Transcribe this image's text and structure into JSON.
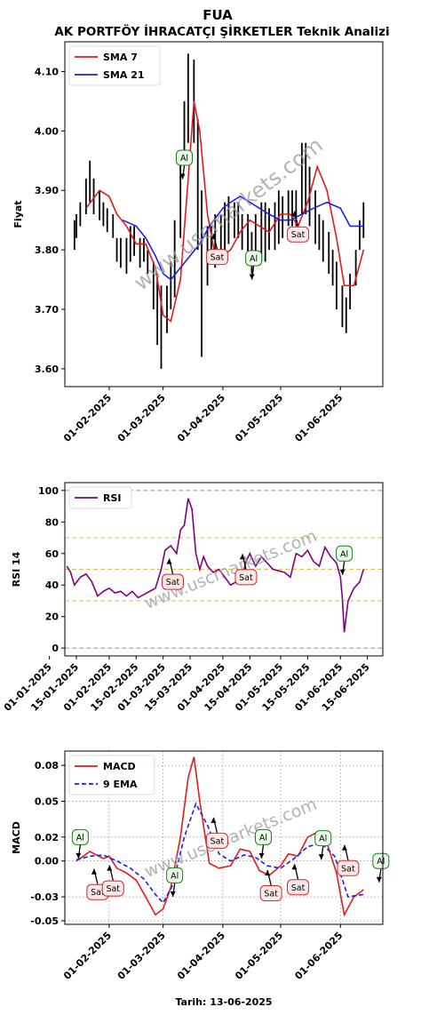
{
  "header": {
    "ticker": "FUA",
    "title": "AK PORTFÖY İHRACATÇI ŞİRKETLER Teknik Analizi"
  },
  "footer": {
    "date_label": "Tarih: 13-06-2025"
  },
  "watermark": "www.uscmarkets.com",
  "colors": {
    "sma7": "#e41a1c",
    "sma21": "#1f1fe8",
    "rsi": "#800080",
    "macd": "#e41a1c",
    "ema": "#1f1fe8",
    "buy": "#1a7f1a",
    "sell": "#d62728"
  },
  "chart_data": [
    {
      "type": "line",
      "id": "price",
      "ylabel": "Fiyat",
      "ylim": [
        3.57,
        4.15
      ],
      "yticks": [
        3.6,
        3.7,
        3.8,
        3.9,
        4.0,
        4.1
      ],
      "ytick_labels": [
        "3.60",
        "3.70",
        "3.80",
        "3.90",
        "4.00",
        "4.10"
      ],
      "xlim": [
        "2025-01-09",
        "2025-06-23"
      ],
      "xticks": [
        "2025-02-01",
        "2025-03-01",
        "2025-04-01",
        "2025-05-01",
        "2025-06-01"
      ],
      "xtick_labels": [
        "01-02-2025",
        "01-03-2025",
        "01-04-2025",
        "01-05-2025",
        "01-06-2025"
      ],
      "legend": {
        "position": "top-left",
        "entries": [
          "SMA 7",
          "SMA 21"
        ]
      },
      "price_bars": {
        "x": [
          "2025-01-14",
          "2025-01-15",
          "2025-01-17",
          "2025-01-20",
          "2025-01-22",
          "2025-01-24",
          "2025-01-27",
          "2025-01-29",
          "2025-01-31",
          "2025-02-03",
          "2025-02-05",
          "2025-02-07",
          "2025-02-10",
          "2025-02-12",
          "2025-02-14",
          "2025-02-17",
          "2025-02-19",
          "2025-02-21",
          "2025-02-24",
          "2025-02-26",
          "2025-02-28",
          "2025-03-03",
          "2025-03-05",
          "2025-03-07",
          "2025-03-10",
          "2025-03-12",
          "2025-03-14",
          "2025-03-17",
          "2025-03-19",
          "2025-03-21",
          "2025-03-24",
          "2025-03-26",
          "2025-03-28",
          "2025-03-31",
          "2025-04-02",
          "2025-04-04",
          "2025-04-07",
          "2025-04-09",
          "2025-04-11",
          "2025-04-14",
          "2025-04-16",
          "2025-04-18",
          "2025-04-21",
          "2025-04-23",
          "2025-04-25",
          "2025-04-28",
          "2025-04-30",
          "2025-05-02",
          "2025-05-05",
          "2025-05-07",
          "2025-05-09",
          "2025-05-12",
          "2025-05-14",
          "2025-05-16",
          "2025-05-19",
          "2025-05-21",
          "2025-05-23",
          "2025-05-26",
          "2025-05-28",
          "2025-05-30",
          "2025-06-02",
          "2025-06-04",
          "2025-06-06",
          "2025-06-09",
          "2025-06-11",
          "2025-06-13"
        ],
        "low": [
          3.8,
          3.82,
          3.84,
          3.86,
          3.88,
          3.86,
          3.85,
          3.84,
          3.83,
          3.82,
          3.78,
          3.77,
          3.76,
          3.78,
          3.79,
          3.77,
          3.78,
          3.76,
          3.7,
          3.64,
          3.6,
          3.66,
          3.7,
          3.72,
          3.82,
          3.95,
          3.98,
          3.98,
          3.8,
          3.62,
          3.74,
          3.78,
          3.77,
          3.78,
          3.8,
          3.81,
          3.82,
          3.82,
          3.8,
          3.78,
          3.76,
          3.79,
          3.78,
          3.78,
          3.8,
          3.8,
          3.81,
          3.82,
          3.84,
          3.84,
          3.84,
          3.86,
          3.86,
          3.84,
          3.81,
          3.8,
          3.78,
          3.76,
          3.74,
          3.7,
          3.67,
          3.66,
          3.7,
          3.74,
          3.8,
          3.82
        ],
        "high": [
          3.85,
          3.86,
          3.88,
          3.92,
          3.95,
          3.92,
          3.9,
          3.88,
          3.87,
          3.86,
          3.82,
          3.82,
          3.82,
          3.84,
          3.84,
          3.82,
          3.82,
          3.8,
          3.78,
          3.76,
          3.74,
          3.74,
          3.78,
          3.85,
          3.95,
          4.05,
          4.13,
          4.12,
          4.02,
          3.9,
          3.84,
          3.84,
          3.86,
          3.86,
          3.88,
          3.89,
          3.88,
          3.88,
          3.86,
          3.86,
          3.83,
          3.86,
          3.88,
          3.88,
          3.87,
          3.88,
          3.9,
          3.89,
          3.9,
          3.9,
          3.9,
          3.98,
          3.98,
          3.94,
          3.9,
          3.86,
          3.85,
          3.83,
          3.8,
          3.78,
          3.74,
          3.72,
          3.76,
          3.8,
          3.85,
          3.88
        ]
      },
      "series": [
        {
          "name": "SMA 7",
          "x": [
            "2025-01-20",
            "2025-01-27",
            "2025-02-01",
            "2025-02-05",
            "2025-02-10",
            "2025-02-15",
            "2025-02-20",
            "2025-02-25",
            "2025-03-01",
            "2025-03-05",
            "2025-03-10",
            "2025-03-14",
            "2025-03-17",
            "2025-03-20",
            "2025-03-24",
            "2025-03-28",
            "2025-04-01",
            "2025-04-05",
            "2025-04-10",
            "2025-04-15",
            "2025-04-20",
            "2025-04-25",
            "2025-05-01",
            "2025-05-06",
            "2025-05-10",
            "2025-05-15",
            "2025-05-20",
            "2025-05-25",
            "2025-05-30",
            "2025-06-03",
            "2025-06-08",
            "2025-06-13"
          ],
          "values": [
            3.87,
            3.9,
            3.89,
            3.86,
            3.84,
            3.81,
            3.81,
            3.77,
            3.69,
            3.68,
            3.75,
            3.92,
            4.05,
            4.0,
            3.86,
            3.79,
            3.79,
            3.8,
            3.83,
            3.85,
            3.84,
            3.83,
            3.86,
            3.86,
            3.84,
            3.88,
            3.94,
            3.9,
            3.82,
            3.74,
            3.74,
            3.8
          ]
        },
        {
          "name": "SMA 21",
          "x": [
            "2025-02-08",
            "2025-02-15",
            "2025-02-20",
            "2025-02-25",
            "2025-03-01",
            "2025-03-05",
            "2025-03-10",
            "2025-03-15",
            "2025-03-20",
            "2025-03-25",
            "2025-04-01",
            "2025-04-05",
            "2025-04-10",
            "2025-04-15",
            "2025-04-20",
            "2025-04-25",
            "2025-05-01",
            "2025-05-06",
            "2025-05-12",
            "2025-05-18",
            "2025-05-25",
            "2025-06-01",
            "2025-06-06",
            "2025-06-13"
          ],
          "values": [
            3.85,
            3.84,
            3.82,
            3.79,
            3.76,
            3.75,
            3.77,
            3.79,
            3.81,
            3.84,
            3.87,
            3.88,
            3.89,
            3.88,
            3.87,
            3.86,
            3.85,
            3.85,
            3.86,
            3.87,
            3.88,
            3.87,
            3.84,
            3.84
          ]
        }
      ],
      "annotations": [
        {
          "text": "Al",
          "kind": "buy",
          "date": "2025-03-12",
          "value": 3.955
        },
        {
          "text": "Sat",
          "kind": "sell",
          "date": "2025-03-29",
          "value": 3.788
        },
        {
          "text": "Al",
          "kind": "buy",
          "date": "2025-04-17",
          "value": 3.786
        },
        {
          "text": "Sat",
          "kind": "sell",
          "date": "2025-05-10",
          "value": 3.826
        }
      ]
    },
    {
      "type": "line",
      "id": "rsi",
      "ylabel": "RSI 14",
      "ylim": [
        -5,
        105
      ],
      "yticks": [
        0,
        20,
        40,
        60,
        80,
        100
      ],
      "ytick_labels": [
        "0",
        "20",
        "40",
        "60",
        "80",
        "100"
      ],
      "xlim": [
        "2025-01-09",
        "2025-06-23"
      ],
      "xticks": [
        "2025-01-01",
        "2025-01-15",
        "2025-02-01",
        "2025-02-15",
        "2025-03-01",
        "2025-03-15",
        "2025-04-01",
        "2025-04-15",
        "2025-05-01",
        "2025-05-15",
        "2025-06-01",
        "2025-06-15"
      ],
      "xtick_labels": [
        "01-01-2025",
        "15-01-2025",
        "01-02-2025",
        "15-02-2025",
        "01-03-2025",
        "15-03-2025",
        "01-04-2025",
        "15-04-2025",
        "01-05-2025",
        "15-05-2025",
        "01-06-2025",
        "15-06-2025"
      ],
      "reference_lines": [
        0,
        30,
        50,
        70,
        100
      ],
      "legend": {
        "position": "top-left",
        "entries": [
          "RSI"
        ]
      },
      "series": [
        {
          "name": "RSI",
          "x": [
            "2025-01-10",
            "2025-01-12",
            "2025-01-14",
            "2025-01-17",
            "2025-01-20",
            "2025-01-23",
            "2025-01-26",
            "2025-01-29",
            "2025-02-01",
            "2025-02-04",
            "2025-02-07",
            "2025-02-10",
            "2025-02-13",
            "2025-02-16",
            "2025-02-19",
            "2025-02-22",
            "2025-02-25",
            "2025-02-28",
            "2025-03-02",
            "2025-03-05",
            "2025-03-08",
            "2025-03-10",
            "2025-03-12",
            "2025-03-14",
            "2025-03-16",
            "2025-03-18",
            "2025-03-20",
            "2025-03-22",
            "2025-03-24",
            "2025-03-27",
            "2025-03-30",
            "2025-04-02",
            "2025-04-05",
            "2025-04-08",
            "2025-04-11",
            "2025-04-13",
            "2025-04-15",
            "2025-04-18",
            "2025-04-21",
            "2025-04-24",
            "2025-04-27",
            "2025-04-30",
            "2025-05-03",
            "2025-05-06",
            "2025-05-09",
            "2025-05-12",
            "2025-05-15",
            "2025-05-18",
            "2025-05-21",
            "2025-05-24",
            "2025-05-27",
            "2025-05-30",
            "2025-06-01",
            "2025-06-02",
            "2025-06-03",
            "2025-06-05",
            "2025-06-08",
            "2025-06-11",
            "2025-06-13"
          ],
          "values": [
            52,
            48,
            40,
            45,
            47,
            42,
            33,
            36,
            38,
            35,
            36,
            33,
            36,
            32,
            34,
            36,
            38,
            50,
            62,
            65,
            60,
            75,
            78,
            95,
            88,
            60,
            50,
            58,
            52,
            48,
            50,
            45,
            40,
            42,
            45,
            55,
            60,
            52,
            58,
            54,
            50,
            49,
            48,
            45,
            60,
            58,
            62,
            55,
            52,
            64,
            58,
            54,
            45,
            32,
            10,
            30,
            38,
            42,
            50
          ]
        }
      ],
      "annotations": [
        {
          "text": "Sat",
          "kind": "sell",
          "date": "2025-03-06",
          "value": 42
        },
        {
          "text": "Sat",
          "kind": "sell",
          "date": "2025-04-13",
          "value": 45
        },
        {
          "text": "Al",
          "kind": "buy",
          "date": "2025-06-03",
          "value": 60
        }
      ]
    },
    {
      "type": "line",
      "id": "macd",
      "ylabel": "MACD",
      "ylim": [
        -0.053,
        0.092
      ],
      "yticks": [
        -0.05,
        -0.03,
        0.0,
        0.02,
        0.05,
        0.08
      ],
      "ytick_labels": [
        "-0.05",
        "-0.03",
        "0.00",
        "0.02",
        "0.05",
        "0.08"
      ],
      "xlim": [
        "2025-01-09",
        "2025-06-23"
      ],
      "xticks": [
        "2025-02-01",
        "2025-03-01",
        "2025-04-01",
        "2025-05-01",
        "2025-06-01"
      ],
      "xtick_labels": [
        "01-02-2025",
        "01-03-2025",
        "01-04-2025",
        "01-05-2025",
        "01-06-2025"
      ],
      "legend": {
        "position": "top-left",
        "entries": [
          "MACD",
          "9 EMA"
        ]
      },
      "series": [
        {
          "name": "MACD",
          "x": [
            "2025-01-15",
            "2025-01-22",
            "2025-01-29",
            "2025-02-01",
            "2025-02-05",
            "2025-02-10",
            "2025-02-15",
            "2025-02-20",
            "2025-02-25",
            "2025-03-01",
            "2025-03-05",
            "2025-03-10",
            "2025-03-14",
            "2025-03-17",
            "2025-03-20",
            "2025-03-25",
            "2025-03-30",
            "2025-04-05",
            "2025-04-10",
            "2025-04-15",
            "2025-04-20",
            "2025-04-25",
            "2025-05-01",
            "2025-05-05",
            "2025-05-10",
            "2025-05-15",
            "2025-05-20",
            "2025-05-25",
            "2025-05-30",
            "2025-06-03",
            "2025-06-08",
            "2025-06-13"
          ],
          "values": [
            0.0,
            0.008,
            0.002,
            0.004,
            -0.006,
            -0.01,
            -0.016,
            -0.03,
            -0.045,
            -0.04,
            -0.022,
            0.02,
            0.07,
            0.087,
            0.05,
            -0.002,
            -0.006,
            -0.004,
            0.01,
            0.008,
            -0.008,
            -0.012,
            -0.004,
            0.006,
            0.004,
            0.02,
            0.024,
            0.015,
            -0.01,
            -0.045,
            -0.03,
            -0.024
          ]
        },
        {
          "name": "9 EMA",
          "x": [
            "2025-01-15",
            "2025-01-22",
            "2025-01-29",
            "2025-02-05",
            "2025-02-12",
            "2025-02-19",
            "2025-02-25",
            "2025-03-01",
            "2025-03-06",
            "2025-03-12",
            "2025-03-18",
            "2025-03-24",
            "2025-03-30",
            "2025-04-05",
            "2025-04-12",
            "2025-04-18",
            "2025-04-24",
            "2025-05-01",
            "2025-05-08",
            "2025-05-15",
            "2025-05-22",
            "2025-05-29",
            "2025-06-05",
            "2025-06-13"
          ],
          "values": [
            0.001,
            0.004,
            0.005,
            0.0,
            -0.006,
            -0.015,
            -0.028,
            -0.035,
            -0.02,
            0.02,
            0.048,
            0.03,
            0.006,
            0.0,
            0.005,
            0.003,
            -0.004,
            -0.006,
            0.002,
            0.012,
            0.015,
            0.004,
            -0.03,
            -0.028
          ]
        }
      ],
      "annotations": [
        {
          "text": "Al",
          "kind": "buy",
          "date": "2025-01-17",
          "value": 0.02
        },
        {
          "text": "Sat",
          "kind": "sell",
          "date": "2025-01-26",
          "value": -0.026
        },
        {
          "text": "Sat",
          "kind": "sell",
          "date": "2025-02-03",
          "value": -0.023
        },
        {
          "text": "Al",
          "kind": "buy",
          "date": "2025-03-07",
          "value": -0.012
        },
        {
          "text": "Sat",
          "kind": "sell",
          "date": "2025-03-29",
          "value": 0.017
        },
        {
          "text": "Al",
          "kind": "buy",
          "date": "2025-04-22",
          "value": 0.02
        },
        {
          "text": "Sat",
          "kind": "sell",
          "date": "2025-04-26",
          "value": -0.027
        },
        {
          "text": "Sat",
          "kind": "sell",
          "date": "2025-05-10",
          "value": -0.022
        },
        {
          "text": "Al",
          "kind": "buy",
          "date": "2025-05-23",
          "value": 0.019
        },
        {
          "text": "Sat",
          "kind": "sell",
          "date": "2025-06-05",
          "value": -0.006
        },
        {
          "text": "Al",
          "kind": "buy",
          "date": "2025-06-22",
          "value": 0.0
        }
      ]
    }
  ]
}
